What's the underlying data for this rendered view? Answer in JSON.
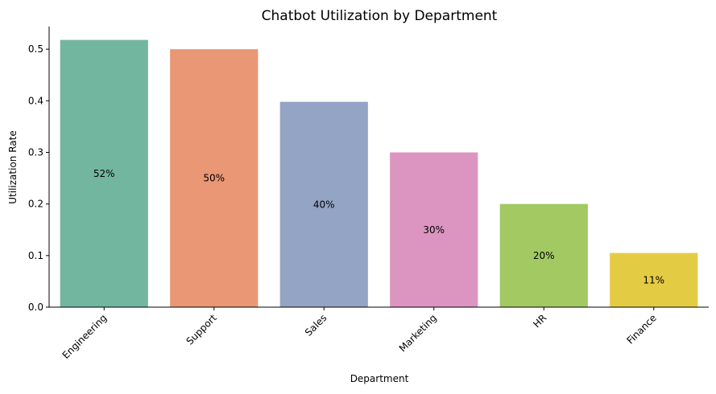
{
  "chart_data": {
    "type": "bar",
    "title": "Chatbot Utilization by Department",
    "xlabel": "Department",
    "ylabel": "Utilization Rate",
    "categories": [
      "Engineering",
      "Support",
      "Sales",
      "Marketing",
      "HR",
      "Finance"
    ],
    "values": [
      0.518,
      0.5,
      0.398,
      0.3,
      0.2,
      0.105
    ],
    "data_labels": [
      "52%",
      "50%",
      "40%",
      "30%",
      "20%",
      "11%"
    ],
    "colors": [
      "#73b6a0",
      "#e99775",
      "#93a4c4",
      "#db95c0",
      "#a2c962",
      "#e4cb44"
    ],
    "yticks": [
      0.0,
      0.1,
      0.2,
      0.3,
      0.4,
      0.5
    ],
    "ytick_labels": [
      "0.0",
      "0.1",
      "0.2",
      "0.3",
      "0.4",
      "0.5"
    ],
    "ylim": [
      0,
      0.5439
    ],
    "grid": false,
    "legend": false
  }
}
